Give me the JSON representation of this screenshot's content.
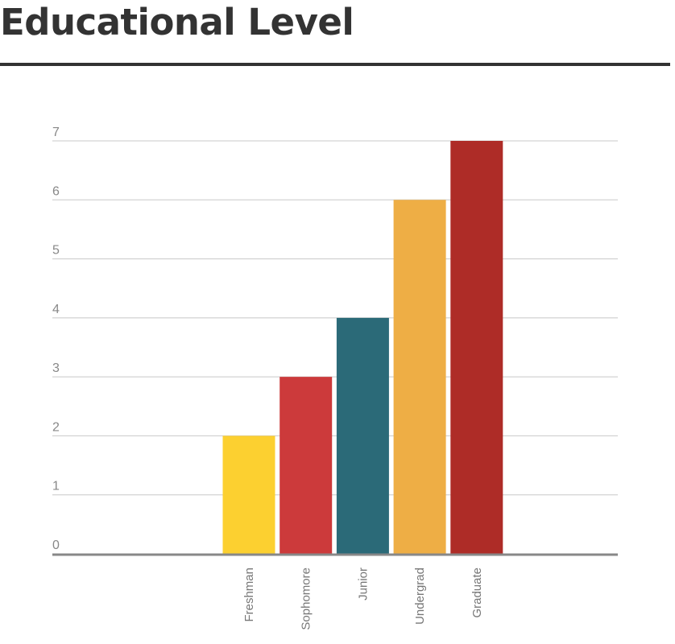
{
  "title": "Educational Level",
  "chart_data": {
    "type": "bar",
    "title": "Educational Level",
    "xlabel": "",
    "ylabel": "",
    "categories": [
      "Freshman",
      "Sophomore",
      "Junior",
      "Undergrad",
      "Graduate"
    ],
    "values": [
      2,
      3,
      4,
      6,
      7
    ],
    "colors": [
      "#fcd030",
      "#cc3a3b",
      "#2b6a78",
      "#eeae45",
      "#ae2c27"
    ],
    "ylim": [
      0,
      7
    ],
    "yticks": [
      0,
      1,
      2,
      3,
      4,
      5,
      6,
      7
    ],
    "grid": true,
    "gridColor": "#c8c8c8",
    "axisColor": "#888888"
  }
}
